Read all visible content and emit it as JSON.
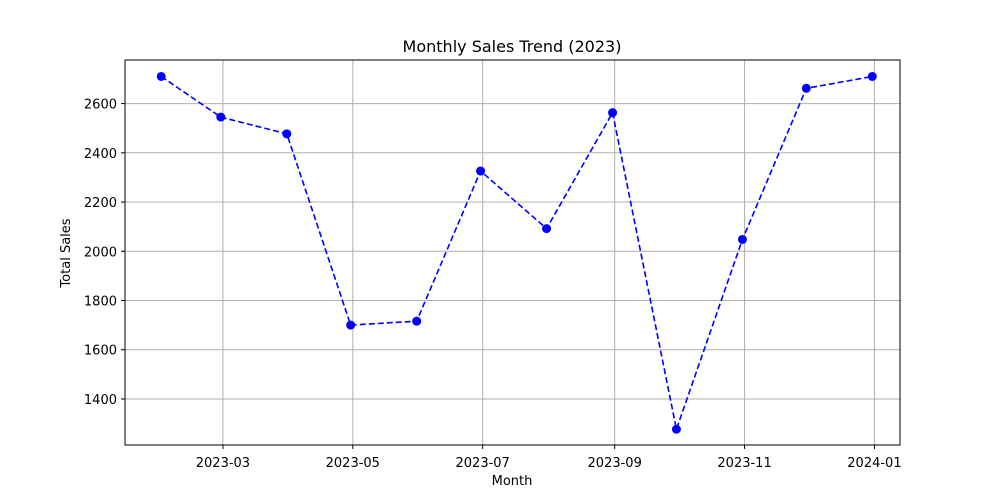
{
  "chart_data": {
    "type": "line",
    "title": "Monthly Sales Trend (2023)",
    "xlabel": "Month",
    "ylabel": "Total Sales",
    "x": [
      "2023-01-31",
      "2023-02-28",
      "2023-03-31",
      "2023-04-30",
      "2023-05-31",
      "2023-06-30",
      "2023-07-31",
      "2023-08-31",
      "2023-09-30",
      "2023-10-31",
      "2023-11-30",
      "2023-12-31"
    ],
    "series": [
      {
        "values": [
          2710,
          2545,
          2477,
          1700,
          1716,
          2326,
          2092,
          2563,
          1277,
          2048,
          2662,
          2710
        ],
        "color": "#0000ff",
        "line_style": "dashed",
        "marker": "circle"
      }
    ],
    "xlim": [
      "2023-01-14",
      "2024-01-13"
    ],
    "ylim": [
      1213,
      2777
    ],
    "x_ticks": [
      {
        "date": "2023-03-01",
        "label": "2023-03"
      },
      {
        "date": "2023-05-01",
        "label": "2023-05"
      },
      {
        "date": "2023-07-01",
        "label": "2023-07"
      },
      {
        "date": "2023-09-01",
        "label": "2023-09"
      },
      {
        "date": "2023-11-01",
        "label": "2023-11"
      },
      {
        "date": "2024-01-01",
        "label": "2024-01"
      }
    ],
    "y_ticks": [
      1400,
      1600,
      1800,
      2000,
      2200,
      2400,
      2600
    ],
    "grid": true,
    "grid_color": "#b0b0b0"
  }
}
